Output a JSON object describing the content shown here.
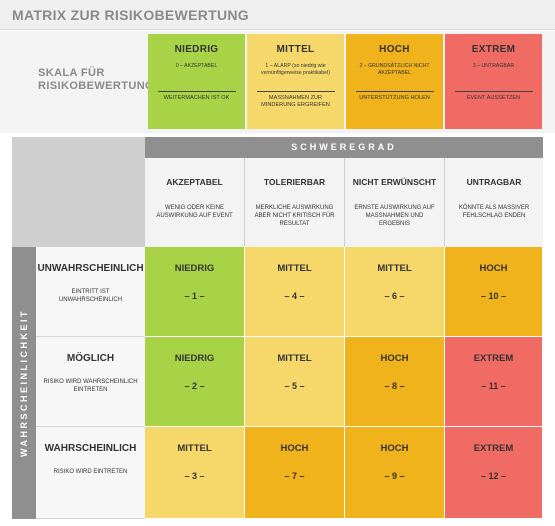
{
  "title": "MATRIX ZUR RISIKOBEWERTUNG",
  "scale": {
    "label": "SKALA FÜR RISIKOBEWERTUNG",
    "items": [
      {
        "title": "NIEDRIG",
        "definition": "0 – AKZEPTABEL",
        "action": "WEITERMACHEN IST OK",
        "color": "#a9d346"
      },
      {
        "title": "MITTEL",
        "definition": "1 – ALARP (so niedrig wie vernünftigerweise praktikabel)",
        "action": "MASSNAHMEN ZUR MINDERUNG ERGREIFEN",
        "color": "#f6d86a"
      },
      {
        "title": "HOCH",
        "definition": "2 – GRUNDSÄTZLICH NICHT AKZEPTABEL",
        "action": "UNTERSTÜTZUNG HOLEN",
        "color": "#f0b31c"
      },
      {
        "title": "EXTREM",
        "definition": "3 – UNTRAGBAR",
        "action": "EVENT AUSSETZEN",
        "color": "#f06b63"
      }
    ]
  },
  "severity": {
    "header": "SCHWEREGRAD",
    "columns": [
      {
        "title": "AKZEPTABEL",
        "description": "WENIG ODER KEINE AUSWIRKUNG AUF EVENT"
      },
      {
        "title": "TOLERIERBAR",
        "description": "MERKLICHE AUSWIRKUNG ABER NICHT KRITISCH FÜR RESULTAT"
      },
      {
        "title": "NICHT ERWÜNSCHT",
        "description": "ERNSTE AUSWIRKUNG AUF MASSNAHMEN UND ERGEBNIS"
      },
      {
        "title": "UNTRAGBAR",
        "description": "KÖNNTE ALS MASSIVER FEHLSCHLAG ENDEN"
      }
    ]
  },
  "probability": {
    "header": "WAHRSCHEINLICHKEIT",
    "rows": [
      {
        "title": "UNWAHRSCHEINLICH",
        "description": "EINTRITT IST UNWAHRSCHEINLICH"
      },
      {
        "title": "MÖGLICH",
        "description": "RISIKO WIRD WAHRSCHEINLICH EINTRETEN"
      },
      {
        "title": "WAHRSCHEINLICH",
        "description": "RISIKO WIRD EINTRETEN"
      }
    ]
  },
  "matrix": [
    [
      {
        "level": "NIEDRIG",
        "number": "– 1 –",
        "color": "#a9d346"
      },
      {
        "level": "MITTEL",
        "number": "– 4 –",
        "color": "#f6d86a"
      },
      {
        "level": "MITTEL",
        "number": "– 6 –",
        "color": "#f6d86a"
      },
      {
        "level": "HOCH",
        "number": "– 10 –",
        "color": "#f0b31c"
      }
    ],
    [
      {
        "level": "NIEDRIG",
        "number": "– 2 –",
        "color": "#a9d346"
      },
      {
        "level": "MITTEL",
        "number": "– 5 –",
        "color": "#f6d86a"
      },
      {
        "level": "HOCH",
        "number": "– 8 –",
        "color": "#f0b31c"
      },
      {
        "level": "EXTREM",
        "number": "– 11 –",
        "color": "#f06b63"
      }
    ],
    [
      {
        "level": "MITTEL",
        "number": "– 3 –",
        "color": "#f6d86a"
      },
      {
        "level": "HOCH",
        "number": "– 7 –",
        "color": "#f0b31c"
      },
      {
        "level": "HOCH",
        "number": "– 9 –",
        "color": "#f0b31c"
      },
      {
        "level": "EXTREM",
        "number": "– 12 –",
        "color": "#f06b63"
      }
    ]
  ]
}
